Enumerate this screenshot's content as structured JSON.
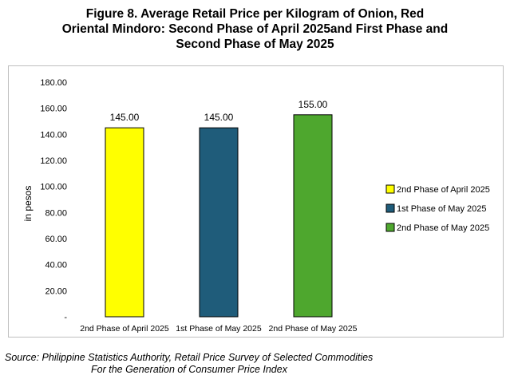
{
  "title_lines": [
    "Figure 8. Average Retail Price per Kilogram of Onion, Red",
    "Oriental Mindoro: Second Phase of April 2025and First Phase and",
    "Second Phase of May 2025"
  ],
  "source_lines": [
    "Source: Philippine Statistics Authority, Retail Price Survey of Selected Commodities",
    "For the Generation of Consumer Price Index"
  ],
  "chart_data": {
    "type": "bar",
    "title": "Figure 8. Average Retail Price per Kilogram of Onion, Red Oriental Mindoro: Second Phase of April 2025and First Phase and Second Phase of May 2025",
    "ylabel": "in pesos",
    "xlabel": "",
    "ylim": [
      0,
      180
    ],
    "yticks": [
      "-",
      "20.00",
      "40.00",
      "60.00",
      "80.00",
      "100.00",
      "120.00",
      "140.00",
      "160.00",
      "180.00"
    ],
    "categories": [
      "2nd Phase of April 2025",
      "1st Phase of May 2025",
      "2nd Phase of May 2025"
    ],
    "values": [
      145.0,
      145.0,
      155.0
    ],
    "value_labels": [
      "145.00",
      "145.00",
      "155.00"
    ],
    "colors": [
      "#ffff00",
      "#1f5c7a",
      "#4ea72e"
    ],
    "legend": {
      "position": "right",
      "entries": [
        "2nd Phase of April 2025",
        "1st Phase of May 2025",
        "2nd Phase of May 2025"
      ]
    },
    "grid": false
  }
}
